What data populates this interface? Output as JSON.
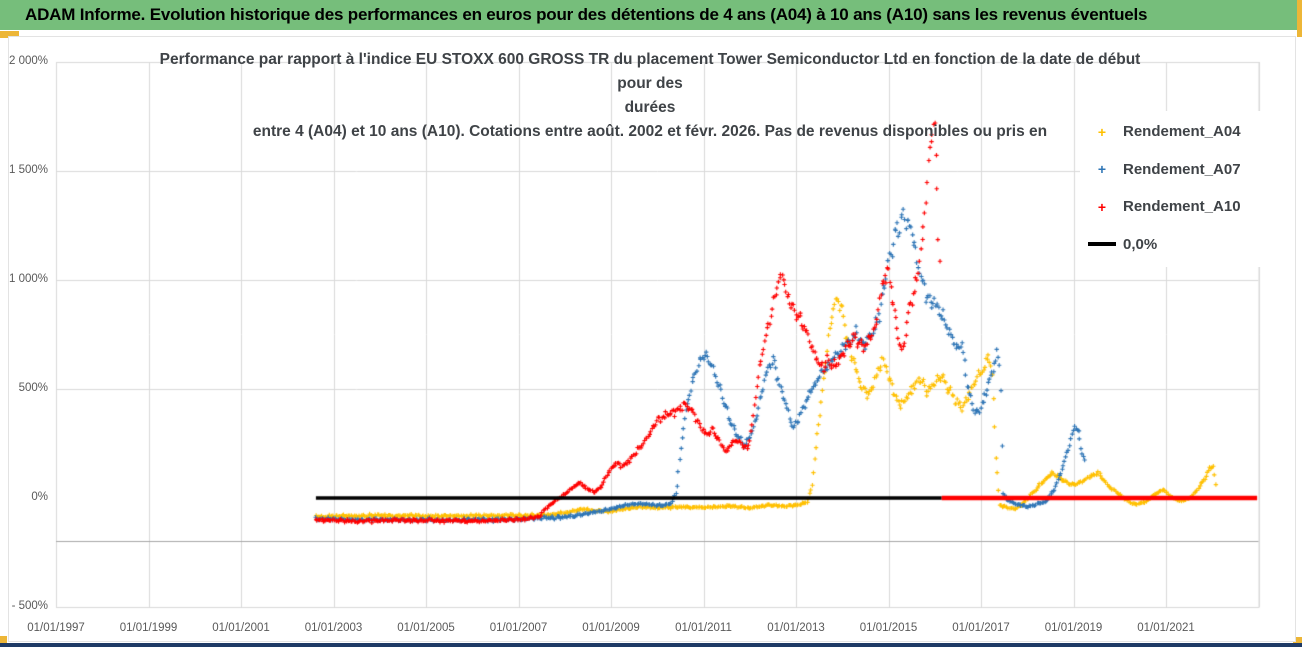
{
  "header": {
    "title": "ADAM Informe. Evolution historique des performances en euros pour des détentions de 4 ans (A04) à 10 ans (A10) sans les revenus éventuels",
    "bg_color": "#76BE7B"
  },
  "chart": {
    "title_line1": "Performance par rapport à l'indice EU STOXX 600 GROSS TR  du placement Tower Semiconductor Ltd en fonction de la date de début pour des",
    "title_line2": "durées",
    "title_line3": "entre 4 (A04) et 10 ans (A10).  Cotations entre août. 2002 et févr. 2026. Pas de revenus disponibles ou pris en"
  },
  "colors": {
    "header_bg": "#76BE7B",
    "gold_accent": "#EDB637",
    "navy_strip": "#1E3A66",
    "grid": "#D9D9D9",
    "axis_baseline": "#A6A6A6",
    "series_a04": "#FFC000",
    "series_a07": "#2E75B6",
    "series_a10": "#FF0000",
    "zero_line_black": "#000000",
    "zero_line_red": "#FF0000"
  },
  "legend": {
    "items": [
      {
        "label": "Rendement_A04",
        "marker": "plus",
        "color": "#FFC000"
      },
      {
        "label": "Rendement_A07",
        "marker": "plus",
        "color": "#2E75B6"
      },
      {
        "label": "Rendement_A10",
        "marker": "plus",
        "color": "#FF0000"
      },
      {
        "label": "0,0%",
        "marker": "line",
        "color": "#000000"
      }
    ]
  },
  "chart_data": {
    "type": "scatter",
    "x_axis": {
      "min": 1997,
      "max": 2023,
      "tick_step_years": 2,
      "tick_labels": [
        "01/01/1997",
        "01/01/1999",
        "01/01/2001",
        "01/01/2003",
        "01/01/2005",
        "01/01/2007",
        "01/01/2009",
        "01/01/2011",
        "01/01/2013",
        "01/01/2015",
        "01/01/2017",
        "01/01/2019",
        "01/01/2021"
      ],
      "tick_years": [
        1997,
        1999,
        2001,
        2003,
        2005,
        2007,
        2009,
        2011,
        2013,
        2015,
        2017,
        2019,
        2021
      ]
    },
    "y_axis": {
      "min": -500,
      "max": 2000,
      "unit": "%",
      "tick_labels": [
        "2 000%",
        "1 500%",
        "1 000%",
        "500%",
        "0%",
        "- 500%"
      ],
      "tick_values": [
        2000,
        1500,
        1000,
        500,
        0,
        -500
      ],
      "gridline_values": [
        1500,
        1000,
        500
      ],
      "baseline_value": -195
    },
    "grid": true,
    "legend_position": "right-overlay",
    "zero_lines": [
      {
        "name": "0,0%",
        "color": "#000000",
        "value": 0,
        "from_year": 2002.62,
        "to_year": 2016.15,
        "width": 3.5
      },
      {
        "name": "A10-missing-data-zero",
        "color": "#FF0000",
        "value": 0,
        "from_year": 2016.15,
        "to_year": 2022.97,
        "width": 4.5
      }
    ],
    "series": [
      {
        "name": "Rendement_A04",
        "color": "#FFC000",
        "marker": "plus",
        "anchors": [
          [
            2002.62,
            -85
          ],
          [
            2003.2,
            -83
          ],
          [
            2004,
            -80
          ],
          [
            2005,
            -83
          ],
          [
            2006,
            -82
          ],
          [
            2007,
            -81
          ],
          [
            2007.6,
            -78
          ],
          [
            2008.1,
            -65
          ],
          [
            2008.35,
            -50
          ],
          [
            2008.6,
            -58
          ],
          [
            2009,
            -62
          ],
          [
            2009.3,
            -50
          ],
          [
            2009.6,
            -42
          ],
          [
            2010,
            -45
          ],
          [
            2010.5,
            -40
          ],
          [
            2011,
            -44
          ],
          [
            2011.5,
            -36
          ],
          [
            2012,
            -46
          ],
          [
            2012.4,
            -32
          ],
          [
            2012.8,
            -38
          ],
          [
            2013.05,
            -30
          ],
          [
            2013.25,
            -20
          ],
          [
            2013.35,
            60
          ],
          [
            2013.5,
            380
          ],
          [
            2013.65,
            640
          ],
          [
            2013.8,
            870
          ],
          [
            2013.9,
            905
          ],
          [
            2014,
            860
          ],
          [
            2014.1,
            730
          ],
          [
            2014.25,
            620
          ],
          [
            2014.4,
            520
          ],
          [
            2014.55,
            470
          ],
          [
            2014.7,
            540
          ],
          [
            2014.85,
            635
          ],
          [
            2014.95,
            590
          ],
          [
            2015.1,
            500
          ],
          [
            2015.25,
            425
          ],
          [
            2015.4,
            465
          ],
          [
            2015.55,
            515
          ],
          [
            2015.7,
            545
          ],
          [
            2015.85,
            480
          ],
          [
            2016,
            525
          ],
          [
            2016.15,
            560
          ],
          [
            2016.3,
            510
          ],
          [
            2016.45,
            445
          ],
          [
            2016.6,
            415
          ],
          [
            2016.75,
            470
          ],
          [
            2016.9,
            540
          ],
          [
            2017.05,
            590
          ],
          [
            2017.15,
            655
          ],
          [
            2017.25,
            560
          ],
          [
            2017.32,
            200
          ],
          [
            2017.4,
            -30
          ],
          [
            2017.55,
            -45
          ],
          [
            2017.75,
            -50
          ],
          [
            2017.95,
            -15
          ],
          [
            2018.15,
            30
          ],
          [
            2018.35,
            80
          ],
          [
            2018.55,
            115
          ],
          [
            2018.75,
            85
          ],
          [
            2018.95,
            60
          ],
          [
            2019.15,
            70
          ],
          [
            2019.35,
            100
          ],
          [
            2019.55,
            115
          ],
          [
            2019.75,
            55
          ],
          [
            2019.95,
            25
          ],
          [
            2020.15,
            -12
          ],
          [
            2020.35,
            -30
          ],
          [
            2020.55,
            -18
          ],
          [
            2020.75,
            18
          ],
          [
            2020.95,
            38
          ],
          [
            2021.15,
            -2
          ],
          [
            2021.35,
            -15
          ],
          [
            2021.55,
            5
          ],
          [
            2021.7,
            45
          ],
          [
            2021.85,
            95
          ],
          [
            2021.95,
            140
          ],
          [
            2022.02,
            148
          ],
          [
            2022.08,
            60
          ]
        ]
      },
      {
        "name": "Rendement_A07",
        "color": "#2E75B6",
        "marker": "plus",
        "anchors": [
          [
            2002.62,
            -95
          ],
          [
            2003.5,
            -100
          ],
          [
            2004.5,
            -99
          ],
          [
            2005.5,
            -101
          ],
          [
            2006.5,
            -100
          ],
          [
            2007.3,
            -96
          ],
          [
            2007.8,
            -90
          ],
          [
            2008.2,
            -82
          ],
          [
            2008.6,
            -68
          ],
          [
            2009,
            -50
          ],
          [
            2009.35,
            -32
          ],
          [
            2009.6,
            -26
          ],
          [
            2009.85,
            -30
          ],
          [
            2010.1,
            -34
          ],
          [
            2010.3,
            -24
          ],
          [
            2010.42,
            30
          ],
          [
            2010.5,
            210
          ],
          [
            2010.6,
            380
          ],
          [
            2010.75,
            520
          ],
          [
            2010.9,
            620
          ],
          [
            2011.05,
            658
          ],
          [
            2011.2,
            600
          ],
          [
            2011.35,
            500
          ],
          [
            2011.55,
            370
          ],
          [
            2011.75,
            280
          ],
          [
            2011.9,
            238
          ],
          [
            2012.05,
            310
          ],
          [
            2012.2,
            430
          ],
          [
            2012.35,
            560
          ],
          [
            2012.5,
            635
          ],
          [
            2012.65,
            520
          ],
          [
            2012.8,
            410
          ],
          [
            2012.95,
            320
          ],
          [
            2013.1,
            390
          ],
          [
            2013.3,
            480
          ],
          [
            2013.5,
            560
          ],
          [
            2013.7,
            610
          ],
          [
            2013.9,
            650
          ],
          [
            2014.1,
            710
          ],
          [
            2014.3,
            755
          ],
          [
            2014.5,
            705
          ],
          [
            2014.7,
            790
          ],
          [
            2014.85,
            880
          ],
          [
            2015,
            1090
          ],
          [
            2015.15,
            1210
          ],
          [
            2015.3,
            1265
          ],
          [
            2015.42,
            1285
          ],
          [
            2015.55,
            1180
          ],
          [
            2015.7,
            1020
          ],
          [
            2015.85,
            915
          ],
          [
            2016,
            890
          ],
          [
            2016.15,
            840
          ],
          [
            2016.3,
            760
          ],
          [
            2016.45,
            690
          ],
          [
            2016.6,
            700
          ],
          [
            2016.7,
            520
          ],
          [
            2016.85,
            400
          ],
          [
            2016.95,
            385
          ],
          [
            2017.1,
            480
          ],
          [
            2017.25,
            590
          ],
          [
            2017.35,
            645
          ],
          [
            2017.42,
            610
          ],
          [
            2017.48,
            20
          ],
          [
            2017.6,
            -15
          ],
          [
            2017.8,
            -30
          ],
          [
            2018,
            -42
          ],
          [
            2018.2,
            -30
          ],
          [
            2018.4,
            -15
          ],
          [
            2018.6,
            40
          ],
          [
            2018.8,
            160
          ],
          [
            2018.95,
            275
          ],
          [
            2019.03,
            332
          ],
          [
            2019.1,
            295
          ],
          [
            2019.17,
            225
          ],
          [
            2019.25,
            160
          ]
        ]
      },
      {
        "name": "Rendement_A10",
        "color": "#FF0000",
        "marker": "plus",
        "anchors": [
          [
            2002.62,
            -100
          ],
          [
            2003.5,
            -106
          ],
          [
            2004.5,
            -102
          ],
          [
            2005.5,
            -104
          ],
          [
            2006.5,
            -103
          ],
          [
            2007.1,
            -99
          ],
          [
            2007.45,
            -85
          ],
          [
            2007.65,
            -35
          ],
          [
            2007.85,
            -5
          ],
          [
            2008.05,
            25
          ],
          [
            2008.2,
            55
          ],
          [
            2008.35,
            68
          ],
          [
            2008.5,
            40
          ],
          [
            2008.65,
            28
          ],
          [
            2008.8,
            55
          ],
          [
            2008.95,
            120
          ],
          [
            2009.1,
            158
          ],
          [
            2009.25,
            148
          ],
          [
            2009.4,
            168
          ],
          [
            2009.55,
            215
          ],
          [
            2009.7,
            255
          ],
          [
            2009.85,
            300
          ],
          [
            2010,
            350
          ],
          [
            2010.15,
            375
          ],
          [
            2010.3,
            390
          ],
          [
            2010.45,
            405
          ],
          [
            2010.6,
            432
          ],
          [
            2010.75,
            400
          ],
          [
            2010.9,
            345
          ],
          [
            2011.05,
            295
          ],
          [
            2011.2,
            318
          ],
          [
            2011.35,
            258
          ],
          [
            2011.5,
            212
          ],
          [
            2011.65,
            268
          ],
          [
            2011.8,
            252
          ],
          [
            2011.95,
            225
          ],
          [
            2012.05,
            330
          ],
          [
            2012.15,
            500
          ],
          [
            2012.3,
            700
          ],
          [
            2012.45,
            850
          ],
          [
            2012.6,
            980
          ],
          [
            2012.68,
            1018
          ],
          [
            2012.8,
            935
          ],
          [
            2012.95,
            862
          ],
          [
            2013.1,
            822
          ],
          [
            2013.25,
            755
          ],
          [
            2013.4,
            660
          ],
          [
            2013.55,
            605
          ],
          [
            2013.7,
            625
          ],
          [
            2013.85,
            602
          ],
          [
            2014,
            655
          ],
          [
            2014.15,
            705
          ],
          [
            2014.3,
            742
          ],
          [
            2014.45,
            692
          ],
          [
            2014.6,
            738
          ],
          [
            2014.72,
            775
          ],
          [
            2014.82,
            930
          ],
          [
            2014.95,
            1045
          ],
          [
            2015.05,
            985
          ],
          [
            2015.2,
            760
          ],
          [
            2015.3,
            665
          ],
          [
            2015.45,
            860
          ],
          [
            2015.6,
            990
          ],
          [
            2015.72,
            1150
          ],
          [
            2015.82,
            1420
          ],
          [
            2015.92,
            1680
          ],
          [
            2015.98,
            1700
          ],
          [
            2016.03,
            1520
          ],
          [
            2016.08,
            1230
          ],
          [
            2016.12,
            1010
          ]
        ]
      }
    ]
  }
}
